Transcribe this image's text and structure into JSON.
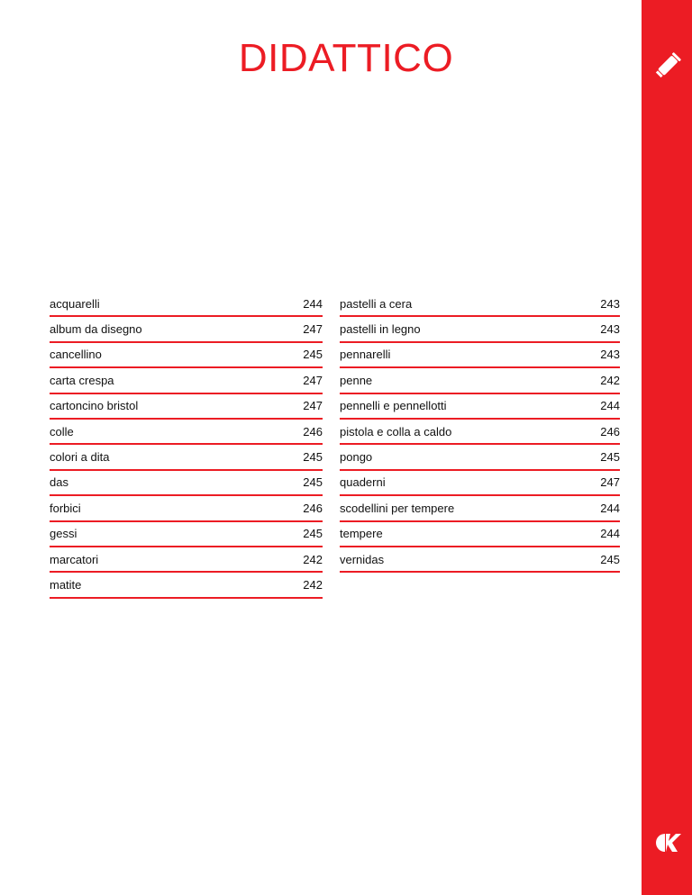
{
  "title": "DIDATTICO",
  "colors": {
    "accent": "#ec1c24"
  },
  "icons": {
    "top": "paint-tube-icon",
    "bottom": "brand-logo"
  },
  "logo_text": "CK",
  "index_left": [
    {
      "label": "acquarelli",
      "page": "244"
    },
    {
      "label": "album da disegno",
      "page": "247"
    },
    {
      "label": "cancellino",
      "page": "245"
    },
    {
      "label": "carta crespa",
      "page": "247"
    },
    {
      "label": "cartoncino bristol",
      "page": "247"
    },
    {
      "label": "colle",
      "page": "246"
    },
    {
      "label": "colori a dita",
      "page": "245"
    },
    {
      "label": "das",
      "page": "245"
    },
    {
      "label": "forbici",
      "page": "246"
    },
    {
      "label": "gessi",
      "page": "245"
    },
    {
      "label": "marcatori",
      "page": "242"
    },
    {
      "label": "matite",
      "page": "242"
    }
  ],
  "index_right": [
    {
      "label": "pastelli a cera",
      "page": "243"
    },
    {
      "label": "pastelli in legno",
      "page": "243"
    },
    {
      "label": "pennarelli",
      "page": "243"
    },
    {
      "label": "penne",
      "page": "242"
    },
    {
      "label": "pennelli e pennellotti",
      "page": "244"
    },
    {
      "label": "pistola e colla a caldo",
      "page": "246"
    },
    {
      "label": "pongo",
      "page": "245"
    },
    {
      "label": "quaderni",
      "page": "247"
    },
    {
      "label": "scodellini per tempere",
      "page": "244"
    },
    {
      "label": "tempere",
      "page": "244"
    },
    {
      "label": "vernidas",
      "page": "245"
    }
  ]
}
